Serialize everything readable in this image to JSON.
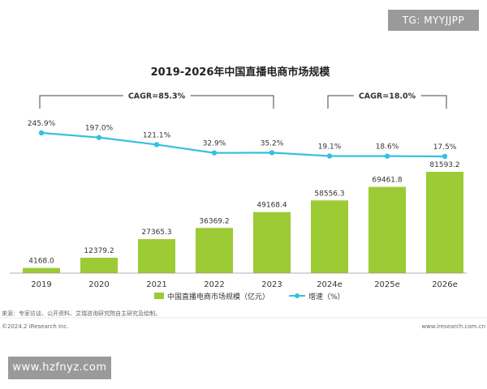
{
  "watermarks": {
    "top": "TG: MYYJJPP",
    "bottom": "www.hzfnyz.com"
  },
  "chart_data": {
    "type": "bar",
    "title": "2019-2026年中国直播电商市场规模",
    "categories": [
      "2019",
      "2020",
      "2021",
      "2022",
      "2023",
      "2024e",
      "2025e",
      "2026e"
    ],
    "series": [
      {
        "name": "中国直播电商市场规模（亿元）",
        "type": "bar",
        "values": [
          4168.0,
          12379.2,
          27365.3,
          36369.2,
          49168.4,
          58556.3,
          69461.8,
          81593.2
        ],
        "labels": [
          "4168.0",
          "12379.2",
          "27365.3",
          "36369.2",
          "49168.4",
          "58556.3",
          "69461.8",
          "81593.2"
        ],
        "color": "#9ccb35"
      },
      {
        "name": "增速（%）",
        "type": "line",
        "values": [
          245.9,
          197.0,
          121.1,
          32.9,
          35.2,
          19.1,
          18.6,
          17.5
        ],
        "labels": [
          "245.9%",
          "197.0%",
          "121.1%",
          "32.9%",
          "35.2%",
          "19.1%",
          "18.6%",
          "17.5%"
        ],
        "color": "#33c1e0"
      }
    ],
    "ylim": [
      0,
      81593.2
    ],
    "growth_ylim": [
      0,
      245.9
    ],
    "annotations": [
      {
        "text": "CAGR=85.3%",
        "from": "2019",
        "to": "2023"
      },
      {
        "text": "CAGR=18.0%",
        "from": "2024e",
        "to": "2026e"
      }
    ],
    "legend_position": "bottom-left",
    "grid": false
  },
  "footer": {
    "source": "来源：专家访谈、公开资料、艾瑞咨询研究院自主研究及绘制。",
    "copyright": "©2024.2 iResearch Inc.",
    "website": "www.iresearch.com.cn"
  }
}
